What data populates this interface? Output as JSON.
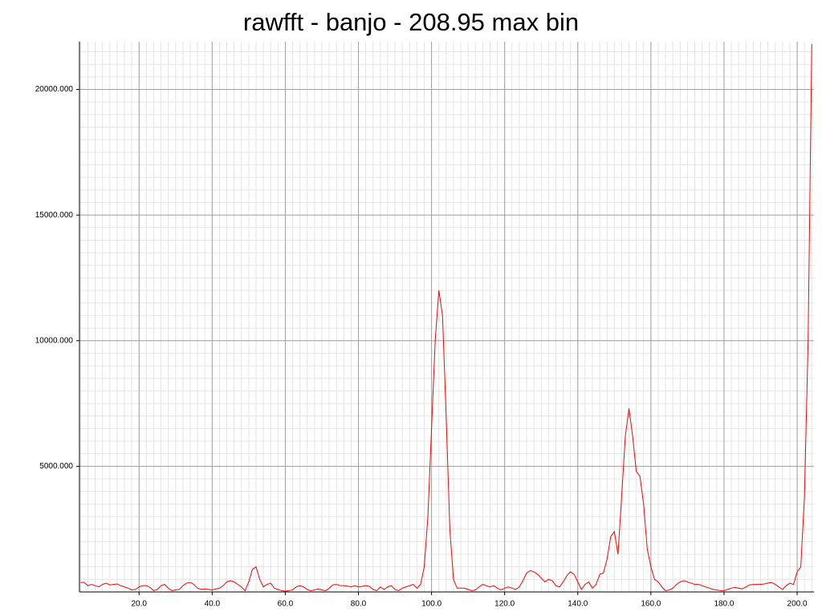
{
  "chart_data": {
    "type": "line",
    "title": "rawfft - banjo - 208.95 max bin",
    "x": [
      4,
      5,
      6,
      7,
      8,
      9,
      10,
      11,
      12,
      13,
      14,
      15,
      16,
      17,
      18,
      19,
      20,
      21,
      22,
      23,
      24,
      25,
      26,
      27,
      28,
      29,
      30,
      31,
      32,
      33,
      34,
      35,
      36,
      37,
      38,
      39,
      40,
      41,
      42,
      43,
      44,
      45,
      46,
      47,
      48,
      49,
      50,
      51,
      52,
      53,
      54,
      55,
      56,
      57,
      58,
      59,
      60,
      61,
      62,
      63,
      64,
      65,
      66,
      67,
      68,
      69,
      70,
      71,
      72,
      73,
      74,
      75,
      76,
      77,
      78,
      79,
      80,
      81,
      82,
      83,
      84,
      85,
      86,
      87,
      88,
      89,
      90,
      91,
      92,
      93,
      94,
      95,
      96,
      97,
      98,
      99,
      100,
      101,
      102,
      103,
      104,
      105,
      106,
      107,
      108,
      109,
      110,
      111,
      112,
      113,
      114,
      115,
      116,
      117,
      118,
      119,
      120,
      121,
      122,
      123,
      124,
      125,
      126,
      127,
      128,
      129,
      130,
      131,
      132,
      133,
      134,
      135,
      136,
      137,
      138,
      139,
      140,
      141,
      142,
      143,
      144,
      145,
      146,
      147,
      148,
      149,
      150,
      151,
      152,
      153,
      154,
      155,
      156,
      157,
      158,
      159,
      160,
      161,
      162,
      163,
      164,
      165,
      166,
      167,
      168,
      169,
      170,
      171,
      172,
      173,
      174,
      175,
      176,
      177,
      178,
      179,
      180,
      181,
      182,
      183,
      184,
      185,
      186,
      187,
      188,
      189,
      190,
      191,
      192,
      193,
      194,
      195,
      196,
      197,
      198,
      199,
      200,
      201,
      202,
      203,
      204
    ],
    "series": [
      {
        "color": "#ff0000",
        "values": [
          380,
          380,
          250,
          300,
          250,
          200,
          300,
          350,
          280,
          300,
          320,
          250,
          200,
          150,
          80,
          100,
          200,
          250,
          250,
          180,
          50,
          100,
          250,
          300,
          150,
          50,
          80,
          100,
          250,
          350,
          380,
          300,
          150,
          100,
          120,
          100,
          80,
          120,
          150,
          250,
          400,
          450,
          400,
          300,
          200,
          50,
          400,
          900,
          1000,
          500,
          200,
          300,
          350,
          150,
          100,
          50,
          30,
          50,
          80,
          200,
          250,
          200,
          100,
          50,
          80,
          120,
          80,
          50,
          150,
          280,
          300,
          250,
          250,
          230,
          200,
          250,
          200,
          220,
          250,
          220,
          100,
          50,
          200,
          100,
          200,
          250,
          100,
          50,
          150,
          200,
          250,
          300,
          150,
          300,
          1000,
          3000,
          6500,
          10000,
          12000,
          11000,
          7000,
          2500,
          500,
          150,
          150,
          150,
          100,
          50,
          80,
          200,
          300,
          250,
          200,
          250,
          150,
          80,
          150,
          200,
          150,
          100,
          200,
          450,
          750,
          850,
          800,
          700,
          550,
          400,
          500,
          450,
          250,
          200,
          400,
          650,
          800,
          700,
          400,
          100,
          300,
          400,
          150,
          300,
          700,
          750,
          1300,
          2200,
          2400,
          1500,
          3800,
          6200,
          7300,
          6200,
          4800,
          4600,
          3500,
          1700,
          1000,
          500,
          400,
          200,
          50,
          80,
          150,
          300,
          400,
          450,
          400,
          350,
          300,
          300,
          250,
          200,
          150,
          100,
          80,
          50,
          50,
          100,
          150,
          180,
          150,
          120,
          200,
          280,
          300,
          300,
          300,
          320,
          350,
          380,
          300,
          200,
          100,
          250,
          350,
          300,
          800,
          1000,
          3800,
          10000,
          21800
        ]
      }
    ],
    "xlim": [
      3.7,
      204.6
    ],
    "ylim": [
      0,
      21900
    ],
    "xticks": [
      {
        "value": 20,
        "label": "20.0"
      },
      {
        "value": 40,
        "label": "40.0"
      },
      {
        "value": 60,
        "label": "60.0"
      },
      {
        "value": 80,
        "label": "80.0"
      },
      {
        "value": 100,
        "label": "100.0"
      },
      {
        "value": 120,
        "label": "120.0"
      },
      {
        "value": 140,
        "label": "140.0"
      },
      {
        "value": 160,
        "label": "160.0"
      },
      {
        "value": 180,
        "label": "180.0"
      },
      {
        "value": 200,
        "label": "200.0"
      }
    ],
    "yticks": [
      {
        "value": 5000,
        "label": "5000.000"
      },
      {
        "value": 10000,
        "label": "10000.000"
      },
      {
        "value": 15000,
        "label": "15000.000"
      },
      {
        "value": 20000,
        "label": "20000.000"
      }
    ],
    "grid": true
  }
}
